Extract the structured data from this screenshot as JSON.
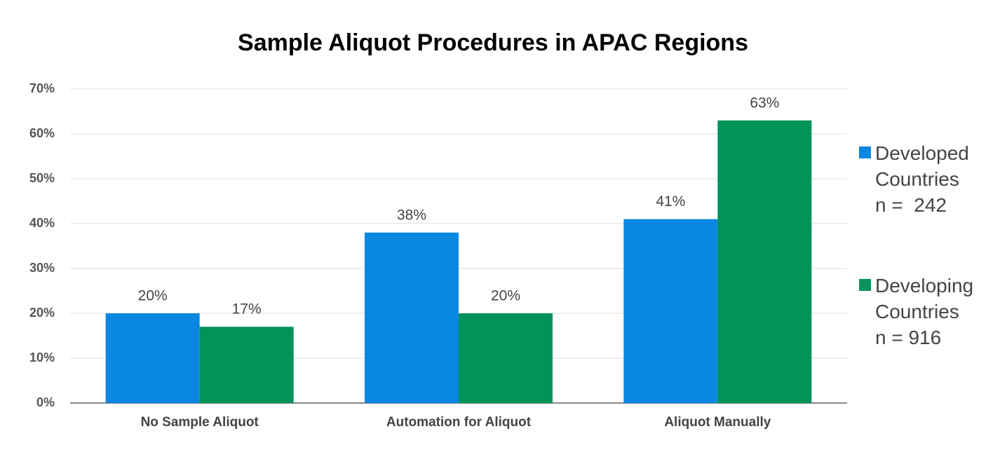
{
  "chart_data": {
    "type": "bar",
    "title": "Sample Aliquot Procedures in APAC Regions",
    "categories": [
      "No Sample Aliquot",
      "Automation for Aliquot",
      "Aliquot Manually"
    ],
    "series": [
      {
        "name": "Developed\nCountries\nn =  242",
        "color": "#0a87e0",
        "values": [
          20,
          38,
          41
        ],
        "value_labels": [
          "20%",
          "38%",
          "41%"
        ]
      },
      {
        "name": "Developing\nCountries\nn = 916",
        "color": "#00935a",
        "values": [
          17,
          20,
          63
        ],
        "value_labels": [
          "17%",
          "20%",
          "63%"
        ]
      }
    ],
    "ylim": [
      0,
      70
    ],
    "yticks": [
      {
        "value": 0,
        "label": "0%"
      },
      {
        "value": 10,
        "label": "10%"
      },
      {
        "value": 20,
        "label": "20%"
      },
      {
        "value": 30,
        "label": "30%"
      },
      {
        "value": 40,
        "label": "40%"
      },
      {
        "value": 50,
        "label": "50%"
      },
      {
        "value": 60,
        "label": "60%"
      },
      {
        "value": 70,
        "label": "70%"
      }
    ],
    "grid": true,
    "legend": "right"
  }
}
